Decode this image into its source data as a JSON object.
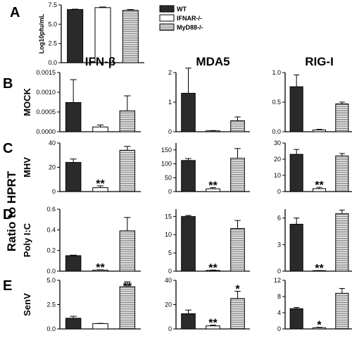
{
  "figure": {
    "big_ylabel": "Ratio to HPRT",
    "legend": [
      {
        "label": "WT",
        "pattern": "solid"
      },
      {
        "label": "IFNAR-/-",
        "pattern": "open"
      },
      {
        "label": "MyD88-/-",
        "pattern": "hatch"
      }
    ],
    "colors": {
      "solid": "#2a2a2a",
      "stroke": "#000000",
      "hatch": "#555555"
    }
  },
  "chart_data": [
    {
      "id": "A",
      "type": "bar",
      "letter": "A",
      "ylabel": "Log10pfu/mL",
      "categories": [
        "WT",
        "IFNAR-/-",
        "MyD88-/-"
      ],
      "values": [
        6.9,
        7.15,
        6.8
      ],
      "errors": [
        0.05,
        0.08,
        0.1
      ],
      "ylim": [
        0,
        7.5
      ],
      "ticks": [
        "0.0",
        "2.5",
        "5.0",
        "7.5"
      ],
      "stars": [
        "",
        "",
        ""
      ]
    },
    {
      "id": "B-IFNb",
      "type": "bar",
      "letter": "B",
      "column_title": "IFN-β",
      "row_label": "MOCK",
      "categories": [
        "WT",
        "IFNAR-/-",
        "MyD88-/-"
      ],
      "values": [
        0.00074,
        0.00012,
        0.00053
      ],
      "errors": [
        0.00058,
        5e-05,
        0.00038
      ],
      "ylim": [
        0,
        0.0015
      ],
      "ticks": [
        "0.0000",
        "0.0005",
        "0.0010",
        "0.0015"
      ],
      "stars": [
        "",
        "",
        ""
      ]
    },
    {
      "id": "B-MDA5",
      "type": "bar",
      "column_title": "MDA5",
      "categories": [
        "WT",
        "IFNAR-/-",
        "MyD88-/-"
      ],
      "values": [
        1.3,
        0.03,
        0.37
      ],
      "errors": [
        0.85,
        0.01,
        0.13
      ],
      "ylim": [
        0,
        2
      ],
      "ticks": [
        "0",
        "1",
        "2"
      ],
      "stars": [
        "",
        "",
        ""
      ]
    },
    {
      "id": "B-RIGI",
      "type": "bar",
      "column_title": "RIG-I",
      "categories": [
        "WT",
        "IFNAR-/-",
        "MyD88-/-"
      ],
      "values": [
        0.76,
        0.03,
        0.47
      ],
      "errors": [
        0.2,
        0.01,
        0.03
      ],
      "ylim": [
        0,
        1.0
      ],
      "ticks": [
        "0.0",
        "0.5",
        "1.0"
      ],
      "stars": [
        "",
        "",
        ""
      ]
    },
    {
      "id": "C-IFNb",
      "type": "bar",
      "letter": "C",
      "row_label": "MHV",
      "categories": [
        "WT",
        "IFNAR-/-",
        "MyD88-/-"
      ],
      "values": [
        24,
        3.2,
        34
      ],
      "errors": [
        2.8,
        1.5,
        3.2
      ],
      "ylim": [
        0,
        40
      ],
      "ticks": [
        "0",
        "20",
        "40"
      ],
      "stars": [
        "",
        "**",
        ""
      ]
    },
    {
      "id": "C-MDA5",
      "type": "bar",
      "categories": [
        "WT",
        "IFNAR-/-",
        "MyD88-/-"
      ],
      "values": [
        112,
        10,
        120
      ],
      "errors": [
        7,
        4,
        35
      ],
      "ylim": [
        0,
        175
      ],
      "ticks": [
        "0",
        "50",
        "100",
        "150"
      ],
      "stars": [
        "",
        "**",
        ""
      ]
    },
    {
      "id": "C-RIGI",
      "type": "bar",
      "categories": [
        "WT",
        "IFNAR-/-",
        "MyD88-/-"
      ],
      "values": [
        23,
        1.8,
        22
      ],
      "errors": [
        3,
        0.8,
        1.5
      ],
      "ylim": [
        0,
        30
      ],
      "ticks": [
        "0",
        "10",
        "20",
        "30"
      ],
      "stars": [
        "",
        "**",
        ""
      ]
    },
    {
      "id": "D-IFNb",
      "type": "bar",
      "letter": "D",
      "row_label": "Poly I:C",
      "categories": [
        "WT",
        "IFNAR-/-",
        "MyD88-/-"
      ],
      "values": [
        0.15,
        0.01,
        0.39
      ],
      "errors": [
        0.005,
        0.003,
        0.13
      ],
      "ylim": [
        0,
        0.6
      ],
      "ticks": [
        "0.0",
        "0.2",
        "0.4",
        "0.6"
      ],
      "stars": [
        "",
        "**",
        ""
      ]
    },
    {
      "id": "D-MDA5",
      "type": "bar",
      "categories": [
        "WT",
        "IFNAR-/-",
        "MyD88-/-"
      ],
      "values": [
        15,
        0.2,
        11.7
      ],
      "errors": [
        0.3,
        0.1,
        2.2
      ],
      "ylim": [
        0,
        17
      ],
      "ticks": [
        "0",
        "5",
        "10",
        "15"
      ],
      "stars": [
        "",
        "**",
        ""
      ]
    },
    {
      "id": "D-RIGI",
      "type": "bar",
      "categories": [
        "WT",
        "IFNAR-/-",
        "MyD88-/-"
      ],
      "values": [
        5.3,
        0.05,
        6.5
      ],
      "errors": [
        0.7,
        0.02,
        0.4
      ],
      "ylim": [
        0,
        7
      ],
      "ticks": [
        "0",
        "3",
        "6"
      ],
      "stars": [
        "",
        "**",
        ""
      ]
    },
    {
      "id": "E-IFNb",
      "type": "bar",
      "letter": "E",
      "row_label": "SenV",
      "categories": [
        "WT",
        "IFNAR-/-",
        "MyD88-/-"
      ],
      "values": [
        1.1,
        0.55,
        4.35
      ],
      "errors": [
        0.2,
        0.02,
        0.5
      ],
      "ylim": [
        0,
        5
      ],
      "ticks": [
        "0.0",
        "2.5",
        "5.0"
      ],
      "stars": [
        "",
        "",
        "**"
      ]
    },
    {
      "id": "E-MDA5",
      "type": "bar",
      "categories": [
        "WT",
        "IFNAR-/-",
        "MyD88-/-"
      ],
      "values": [
        12.5,
        2.5,
        25
      ],
      "errors": [
        3,
        0.6,
        6
      ],
      "ylim": [
        0,
        40
      ],
      "ticks": [
        "0",
        "20",
        "40"
      ],
      "stars": [
        "",
        "**",
        "*"
      ]
    },
    {
      "id": "E-RIGI",
      "type": "bar",
      "categories": [
        "WT",
        "IFNAR-/-",
        "MyD88-/-"
      ],
      "values": [
        5,
        0.3,
        8.8
      ],
      "errors": [
        0.3,
        0.1,
        1.2
      ],
      "ylim": [
        0,
        12
      ],
      "ticks": [
        "0",
        "4",
        "8",
        "12"
      ],
      "stars": [
        "",
        "*",
        ""
      ]
    }
  ]
}
